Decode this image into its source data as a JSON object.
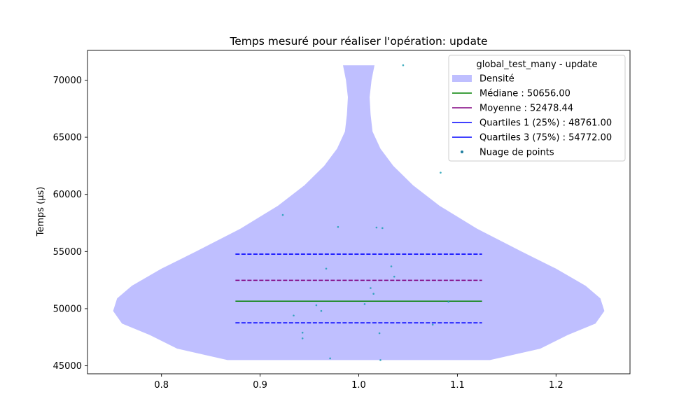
{
  "chart_data": {
    "type": "violin",
    "title": "Temps mesuré pour réaliser l'opération: update",
    "xlabel": "",
    "ylabel": "Temps (µs)",
    "xlim": [
      0.725,
      1.275
    ],
    "ylim": [
      44300,
      72600
    ],
    "x_ticks": [
      {
        "value": 0.8,
        "label": "0.8"
      },
      {
        "value": 0.9,
        "label": "0.9"
      },
      {
        "value": 1.0,
        "label": "1.0"
      },
      {
        "value": 1.1,
        "label": "1.1"
      },
      {
        "value": 1.2,
        "label": "1.2"
      }
    ],
    "y_ticks": [
      {
        "value": 45000,
        "label": "45000"
      },
      {
        "value": 50000,
        "label": "50000"
      },
      {
        "value": 55000,
        "label": "55000"
      },
      {
        "value": 60000,
        "label": "60000"
      },
      {
        "value": 65000,
        "label": "65000"
      },
      {
        "value": 70000,
        "label": "70000"
      }
    ],
    "density": {
      "name": "Densité",
      "color": "#bfbfff",
      "center": 1.0,
      "profile": [
        {
          "y": 45500,
          "half_width": 0.133
        },
        {
          "y": 46500,
          "half_width": 0.184
        },
        {
          "y": 47700,
          "half_width": 0.212
        },
        {
          "y": 48700,
          "half_width": 0.24
        },
        {
          "y": 49800,
          "half_width": 0.249
        },
        {
          "y": 50900,
          "half_width": 0.245
        },
        {
          "y": 52000,
          "half_width": 0.23
        },
        {
          "y": 53500,
          "half_width": 0.2
        },
        {
          "y": 55000,
          "half_width": 0.165
        },
        {
          "y": 57000,
          "half_width": 0.12
        },
        {
          "y": 59000,
          "half_width": 0.082
        },
        {
          "y": 60800,
          "half_width": 0.055
        },
        {
          "y": 62500,
          "half_width": 0.035
        },
        {
          "y": 64000,
          "half_width": 0.022
        },
        {
          "y": 65500,
          "half_width": 0.014
        },
        {
          "y": 67000,
          "half_width": 0.012
        },
        {
          "y": 68500,
          "half_width": 0.011
        },
        {
          "y": 70000,
          "half_width": 0.013
        },
        {
          "y": 71300,
          "half_width": 0.016
        }
      ]
    },
    "lines": [
      {
        "name": "Médiane : 50656.00",
        "value": 50656.0,
        "color": "#008000",
        "dashed": false,
        "x_range": [
          0.875,
          1.125
        ]
      },
      {
        "name": "Moyenne : 52478.44",
        "value": 52478.44,
        "color": "#800080",
        "dashed": true,
        "x_range": [
          0.875,
          1.125
        ]
      },
      {
        "name": "Quartiles 1 (25%) : 48761.00",
        "value": 48761.0,
        "color": "#0000ff",
        "dashed": true,
        "x_range": [
          0.875,
          1.125
        ]
      },
      {
        "name": "Quartiles 3 (75%) : 54772.00",
        "value": 54772.0,
        "color": "#0000ff",
        "dashed": true,
        "x_range": [
          0.875,
          1.125
        ]
      }
    ],
    "points": {
      "name": "Nuage de points",
      "color": "#1f9fb4",
      "data": [
        {
          "x": 1.045,
          "y": 71300
        },
        {
          "x": 1.083,
          "y": 61900
        },
        {
          "x": 0.923,
          "y": 58200
        },
        {
          "x": 0.979,
          "y": 57150
        },
        {
          "x": 1.018,
          "y": 57100
        },
        {
          "x": 1.024,
          "y": 57050
        },
        {
          "x": 0.967,
          "y": 53500
        },
        {
          "x": 1.033,
          "y": 53700
        },
        {
          "x": 1.036,
          "y": 52800
        },
        {
          "x": 1.012,
          "y": 51800
        },
        {
          "x": 1.015,
          "y": 51300
        },
        {
          "x": 1.006,
          "y": 50400
        },
        {
          "x": 0.957,
          "y": 50300
        },
        {
          "x": 0.962,
          "y": 49800
        },
        {
          "x": 0.934,
          "y": 49400
        },
        {
          "x": 1.091,
          "y": 50600
        },
        {
          "x": 1.075,
          "y": 48600
        },
        {
          "x": 0.943,
          "y": 47900
        },
        {
          "x": 1.021,
          "y": 47850
        },
        {
          "x": 0.943,
          "y": 47400
        },
        {
          "x": 0.971,
          "y": 45650
        },
        {
          "x": 1.022,
          "y": 45500
        }
      ]
    },
    "legend": {
      "title": "global_test_many - update",
      "position": "upper right",
      "entries": [
        {
          "label": "Densité",
          "kind": "patch",
          "color": "#bfbfff"
        },
        {
          "label": "Médiane : 50656.00",
          "kind": "line",
          "color": "#008000"
        },
        {
          "label": "Moyenne : 52478.44",
          "kind": "line",
          "color": "#800080"
        },
        {
          "label": "Quartiles 1 (25%) : 48761.00",
          "kind": "line",
          "color": "#0000ff"
        },
        {
          "label": "Quartiles 3 (75%) : 54772.00",
          "kind": "line",
          "color": "#0000ff"
        },
        {
          "label": "Nuage de points",
          "kind": "point",
          "color": "#1f7f9f"
        }
      ]
    }
  }
}
